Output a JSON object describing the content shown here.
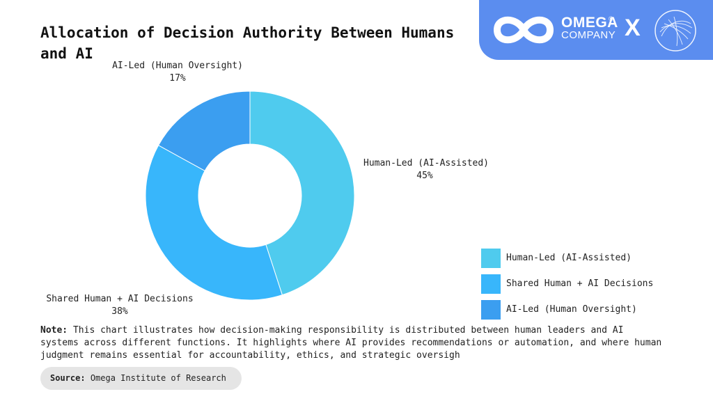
{
  "title": "Allocation of Decision Authority Between Humans and AI",
  "brand": {
    "name_line1": "OMEGA",
    "name_line2": "COMPANY",
    "registered": "®",
    "separator": "X"
  },
  "colors": {
    "human_led": "#4fcbee",
    "shared": "#38b6fb",
    "ai_led": "#3b9ef0",
    "brand_bg": "#5b8def"
  },
  "chart_data": {
    "type": "pie",
    "style": "donut",
    "categories": [
      "Human-Led (AI-Assisted)",
      "Shared Human + AI Decisions",
      "AI-Led (Human Oversight)"
    ],
    "values": [
      45,
      38,
      17
    ],
    "value_labels": [
      "45%",
      "38%",
      "17%"
    ],
    "legend_position": "bottom-right"
  },
  "note": {
    "label": "Note:",
    "text": "This chart illustrates how decision-making responsibility is distributed between human leaders and AI systems across different functions. It highlights where AI provides recommendations or automation, and where human judgment remains essential for accountability, ethics, and strategic oversigh"
  },
  "source": {
    "label": "Source:",
    "text": "Omega Institute of Research"
  }
}
